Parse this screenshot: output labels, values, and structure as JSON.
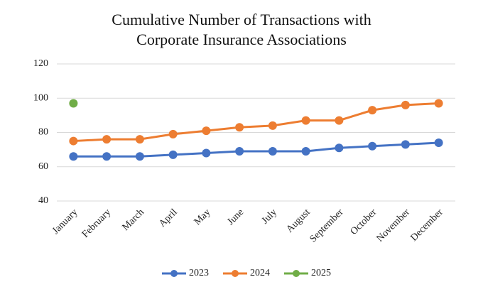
{
  "chart_data": {
    "type": "line",
    "title": [
      "Cumulative Number of Transactions with",
      "Corporate Insurance Associations"
    ],
    "categories": [
      "January",
      "February",
      "March",
      "April",
      "May",
      "June",
      "July",
      "August",
      "September",
      "October",
      "November",
      "December"
    ],
    "series": [
      {
        "name": "2023",
        "color": "#4472c4",
        "values": [
          66,
          66,
          66,
          67,
          68,
          69,
          69,
          69,
          71,
          72,
          73,
          74
        ]
      },
      {
        "name": "2024",
        "color": "#ed7d31",
        "values": [
          75,
          76,
          76,
          79,
          81,
          83,
          84,
          87,
          87,
          93,
          96,
          97
        ]
      },
      {
        "name": "2025",
        "color": "#70ad47",
        "values": [
          97,
          null,
          null,
          null,
          null,
          null,
          null,
          null,
          null,
          null,
          null,
          null
        ]
      }
    ],
    "ylim": [
      40,
      120
    ],
    "yticks": [
      40,
      60,
      80,
      100,
      120
    ],
    "grid": true,
    "legend": "bottom"
  }
}
